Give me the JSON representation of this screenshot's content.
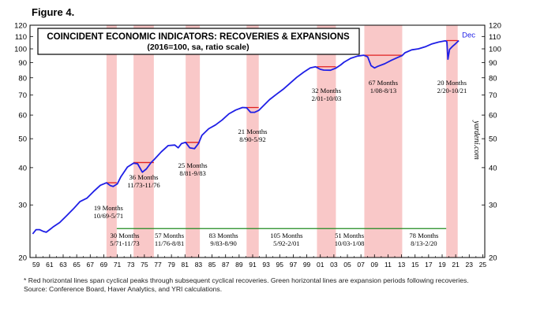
{
  "figure_label": "Figure 4.",
  "footnote": {
    "line1": "*   Red horizontal lines span cyclical peaks through subsequent cyclical recoveries. Green horizontal lines are expansion periods following recoveries.",
    "line2": "Source: Conference Board, Haver Analytics, and YRI calculations."
  },
  "watermark": "yardeni.com",
  "colors": {
    "series": "#1f1fe6",
    "recovery_shade": "#f9c8c8",
    "peak_line": "#e02020",
    "expansion_line": "#1f8a1f"
  },
  "chart_data": {
    "type": "line",
    "title": "COINCIDENT ECONOMIC INDICATORS: RECOVERIES & EXPANSIONS",
    "subtitle": "(2016=100, sa, ratio scale)",
    "y_scale": "log",
    "ylim": [
      20,
      120
    ],
    "xlim": [
      1958.6,
      2025.8
    ],
    "y_ticks": [
      20,
      30,
      40,
      50,
      60,
      70,
      80,
      90,
      100,
      110,
      120
    ],
    "x_ticks": [
      "59",
      "61",
      "63",
      "65",
      "67",
      "69",
      "71",
      "73",
      "75",
      "77",
      "79",
      "81",
      "83",
      "85",
      "87",
      "89",
      "91",
      "93",
      "95",
      "97",
      "99",
      "01",
      "03",
      "05",
      "07",
      "09",
      "11",
      "13",
      "15",
      "17",
      "19",
      "21",
      "23",
      "25"
    ],
    "end_label": "Dec",
    "series": [
      {
        "x": [
          1959.0,
          1959.5,
          1960.0,
          1960.5,
          1961.0,
          1961.5,
          1962.0,
          1963.0,
          1964.0,
          1965.0,
          1966.0,
          1967.0,
          1968.0,
          1969.0,
          1969.9,
          1970.5,
          1970.9,
          1971.5,
          1972.0,
          1973.0,
          1973.9,
          1974.5,
          1975.2,
          1975.8,
          1976.5,
          1977.0,
          1978.0,
          1979.0,
          1980.0,
          1980.5,
          1981.0,
          1981.6,
          1982.2,
          1982.9,
          1983.5,
          1984.0,
          1985.0,
          1986.0,
          1987.0,
          1988.0,
          1989.0,
          1990.0,
          1990.6,
          1991.2,
          1991.8,
          1992.4,
          1993.0,
          1994.0,
          1995.0,
          1996.0,
          1997.0,
          1998.0,
          1999.0,
          2000.0,
          2000.8,
          2001.5,
          2002.0,
          2003.0,
          2003.8,
          2004.5,
          2005.0,
          2006.0,
          2007.0,
          2007.9,
          2008.5,
          2009.0,
          2009.5,
          2010.0,
          2011.0,
          2012.0,
          2013.0,
          2013.6,
          2014.0,
          2015.0,
          2016.0,
          2017.0,
          2018.0,
          2019.0,
          2020.0,
          2020.2,
          2020.35,
          2020.6,
          2021.0,
          2021.5,
          2021.96
        ],
        "values": [
          24.0,
          24.8,
          24.8,
          24.5,
          24.3,
          24.8,
          25.3,
          26.2,
          27.6,
          29.1,
          30.8,
          31.6,
          33.3,
          34.9,
          35.6,
          34.8,
          34.6,
          35.3,
          37.2,
          40.2,
          41.4,
          41.2,
          38.6,
          39.6,
          41.6,
          42.7,
          45.2,
          47.4,
          47.6,
          46.6,
          48.2,
          48.6,
          46.6,
          46.3,
          48.2,
          51.3,
          54.0,
          55.6,
          57.8,
          60.6,
          62.4,
          63.6,
          63.5,
          61.3,
          61.3,
          62.2,
          64.2,
          67.6,
          70.4,
          73.2,
          76.6,
          80.2,
          83.4,
          86.3,
          87.1,
          85.4,
          84.9,
          84.8,
          86.2,
          88.3,
          90.2,
          93.0,
          94.6,
          95.2,
          94.0,
          87.8,
          86.3,
          87.4,
          89.1,
          91.5,
          93.7,
          95.0,
          97.0,
          99.2,
          100.0,
          101.6,
          103.9,
          105.4,
          106.4,
          105.6,
          92.3,
          99.6,
          101.8,
          104.1,
          106.6
        ]
      }
    ],
    "recoveries": [
      {
        "start": 1969.9,
        "end": 1971.42,
        "peak": 35.6,
        "months": "19 Months",
        "range": "10/69-5/71"
      },
      {
        "start": 1973.9,
        "end": 1976.9,
        "peak": 41.6,
        "months": "36 Months",
        "range": "11/73-11/76"
      },
      {
        "start": 1981.6,
        "end": 1983.7,
        "peak": 48.6,
        "months": "25 Months",
        "range": "8/81-9/83"
      },
      {
        "start": 1990.6,
        "end": 1992.4,
        "peak": 63.6,
        "months": "21 Months",
        "range": "8/90-5/92"
      },
      {
        "start": 2001.0,
        "end": 2003.8,
        "peak": 87.1,
        "months": "32 Months",
        "range": "2/01-10/03"
      },
      {
        "start": 2008.0,
        "end": 2013.6,
        "peak": 95.2,
        "months": "67 Months",
        "range": "1/08-8/13"
      },
      {
        "start": 2020.1,
        "end": 2021.8,
        "peak": 106.6,
        "months": "20 Months",
        "range": "2/20-10/21"
      }
    ],
    "expansions": [
      {
        "months": "30 Months",
        "range": "5/71-11/73"
      },
      {
        "months": "57 Months",
        "range": "11/76-8/81"
      },
      {
        "months": "83 Months",
        "range": "9/83-8/90"
      },
      {
        "months": "105 Months",
        "range": "5/92-2/01"
      },
      {
        "months": "51 Months",
        "range": "10/03-1/08"
      },
      {
        "months": "78 Months",
        "range": "8/13-2/20"
      }
    ],
    "expansion_line": {
      "start": 1971.42,
      "end": 2020.1,
      "level": 25.0
    }
  }
}
